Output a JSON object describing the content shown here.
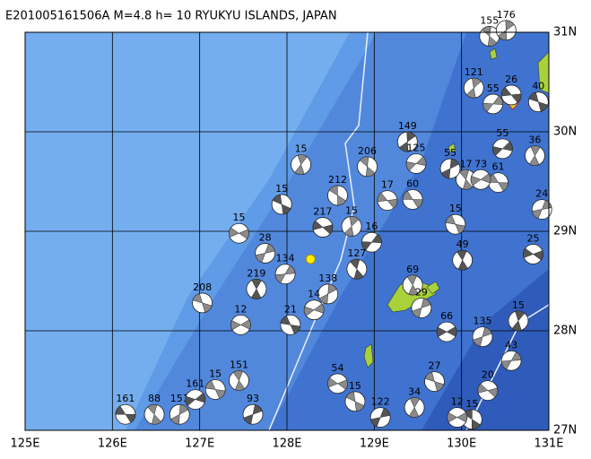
{
  "map": {
    "title": "E201005161506A M=4.8 h= 10 RYUKYU ISLANDS, JAPAN",
    "xlim": [
      125,
      131
    ],
    "ylim": [
      27,
      31
    ],
    "xticks": [
      {
        "value": 125,
        "label": "125E"
      },
      {
        "value": 126,
        "label": "126E"
      },
      {
        "value": 127,
        "label": "127E"
      },
      {
        "value": 128,
        "label": "128E"
      },
      {
        "value": 129,
        "label": "129E"
      },
      {
        "value": 130,
        "label": "130E"
      },
      {
        "value": 131,
        "label": "131E"
      }
    ],
    "yticks": [
      {
        "value": 27,
        "label": "27N"
      },
      {
        "value": 28,
        "label": "28N"
      },
      {
        "value": 29,
        "label": "29N"
      },
      {
        "value": 30,
        "label": "30N"
      },
      {
        "value": 31,
        "label": "31N"
      }
    ],
    "grid": true,
    "epicenter": {
      "lon": 128.27,
      "lat": 28.72
    },
    "events": [
      {
        "lon": 126.15,
        "lat": 27.16,
        "depth": 161
      },
      {
        "lon": 126.48,
        "lat": 27.16,
        "depth": 88
      },
      {
        "lon": 126.77,
        "lat": 27.16,
        "depth": 151
      },
      {
        "lon": 126.95,
        "lat": 27.31,
        "depth": 161
      },
      {
        "lon": 127.18,
        "lat": 27.41,
        "depth": 15
      },
      {
        "lon": 127.45,
        "lat": 27.5,
        "depth": 151
      },
      {
        "lon": 127.61,
        "lat": 27.16,
        "depth": 93
      },
      {
        "lon": 127.47,
        "lat": 28.06,
        "depth": 12
      },
      {
        "lon": 127.03,
        "lat": 28.28,
        "depth": 208
      },
      {
        "lon": 127.65,
        "lat": 28.42,
        "depth": 219
      },
      {
        "lon": 127.75,
        "lat": 28.78,
        "depth": 28
      },
      {
        "lon": 127.45,
        "lat": 28.98,
        "depth": 15
      },
      {
        "lon": 127.94,
        "lat": 29.27,
        "depth": 15
      },
      {
        "lon": 128.16,
        "lat": 29.67,
        "depth": 15
      },
      {
        "lon": 127.98,
        "lat": 28.57,
        "depth": 134
      },
      {
        "lon": 128.41,
        "lat": 29.04,
        "depth": 217
      },
      {
        "lon": 128.58,
        "lat": 29.36,
        "depth": 212
      },
      {
        "lon": 128.74,
        "lat": 29.05,
        "depth": 15
      },
      {
        "lon": 128.97,
        "lat": 28.89,
        "depth": 16
      },
      {
        "lon": 129.15,
        "lat": 29.31,
        "depth": 17
      },
      {
        "lon": 128.92,
        "lat": 29.65,
        "depth": 206
      },
      {
        "lon": 129.38,
        "lat": 29.9,
        "depth": 149
      },
      {
        "lon": 129.48,
        "lat": 29.68,
        "depth": 125
      },
      {
        "lon": 129.44,
        "lat": 29.32,
        "depth": 60
      },
      {
        "lon": 128.8,
        "lat": 28.62,
        "depth": 127
      },
      {
        "lon": 128.47,
        "lat": 28.37,
        "depth": 138
      },
      {
        "lon": 128.31,
        "lat": 28.21,
        "depth": 14
      },
      {
        "lon": 128.04,
        "lat": 28.06,
        "depth": 21
      },
      {
        "lon": 129.44,
        "lat": 28.46,
        "depth": 69
      },
      {
        "lon": 129.54,
        "lat": 28.23,
        "depth": 29
      },
      {
        "lon": 129.83,
        "lat": 27.99,
        "depth": 66
      },
      {
        "lon": 129.69,
        "lat": 27.49,
        "depth": 27
      },
      {
        "lon": 129.46,
        "lat": 27.23,
        "depth": 34
      },
      {
        "lon": 129.07,
        "lat": 27.13,
        "depth": 122
      },
      {
        "lon": 128.58,
        "lat": 27.47,
        "depth": 54
      },
      {
        "lon": 128.78,
        "lat": 27.29,
        "depth": 15
      },
      {
        "lon": 130.65,
        "lat": 28.1,
        "depth": 15
      },
      {
        "lon": 130.57,
        "lat": 27.7,
        "depth": 43
      },
      {
        "lon": 130.3,
        "lat": 27.4,
        "depth": 20
      },
      {
        "lon": 130.12,
        "lat": 27.11,
        "depth": 15
      },
      {
        "lon": 130.14,
        "lat": 30.44,
        "depth": 121
      },
      {
        "lon": 130.36,
        "lat": 30.28,
        "depth": 55
      },
      {
        "lon": 130.57,
        "lat": 30.37,
        "depth": 26
      },
      {
        "lon": 130.32,
        "lat": 30.96,
        "depth": 155
      },
      {
        "lon": 130.51,
        "lat": 31.02,
        "depth": 176
      },
      {
        "lon": 130.47,
        "lat": 29.83,
        "depth": 55
      },
      {
        "lon": 130.42,
        "lat": 29.49,
        "depth": 61
      },
      {
        "lon": 130.05,
        "lat": 29.52,
        "depth": 17
      },
      {
        "lon": 129.87,
        "lat": 29.63,
        "depth": 55
      },
      {
        "lon": 130.22,
        "lat": 29.52,
        "depth": 73
      },
      {
        "lon": 129.93,
        "lat": 29.07,
        "depth": 15
      },
      {
        "lon": 130.01,
        "lat": 28.71,
        "depth": 49
      },
      {
        "lon": 130.24,
        "lat": 27.94,
        "depth": 135
      },
      {
        "lon": 129.95,
        "lat": 27.13,
        "depth": 12
      },
      {
        "lon": 130.88,
        "lat": 30.3,
        "depth": 40
      },
      {
        "lon": 130.84,
        "lat": 29.76,
        "depth": 36
      },
      {
        "lon": 130.92,
        "lat": 29.22,
        "depth": 24
      },
      {
        "lon": 130.82,
        "lat": 28.77,
        "depth": 25
      }
    ]
  }
}
